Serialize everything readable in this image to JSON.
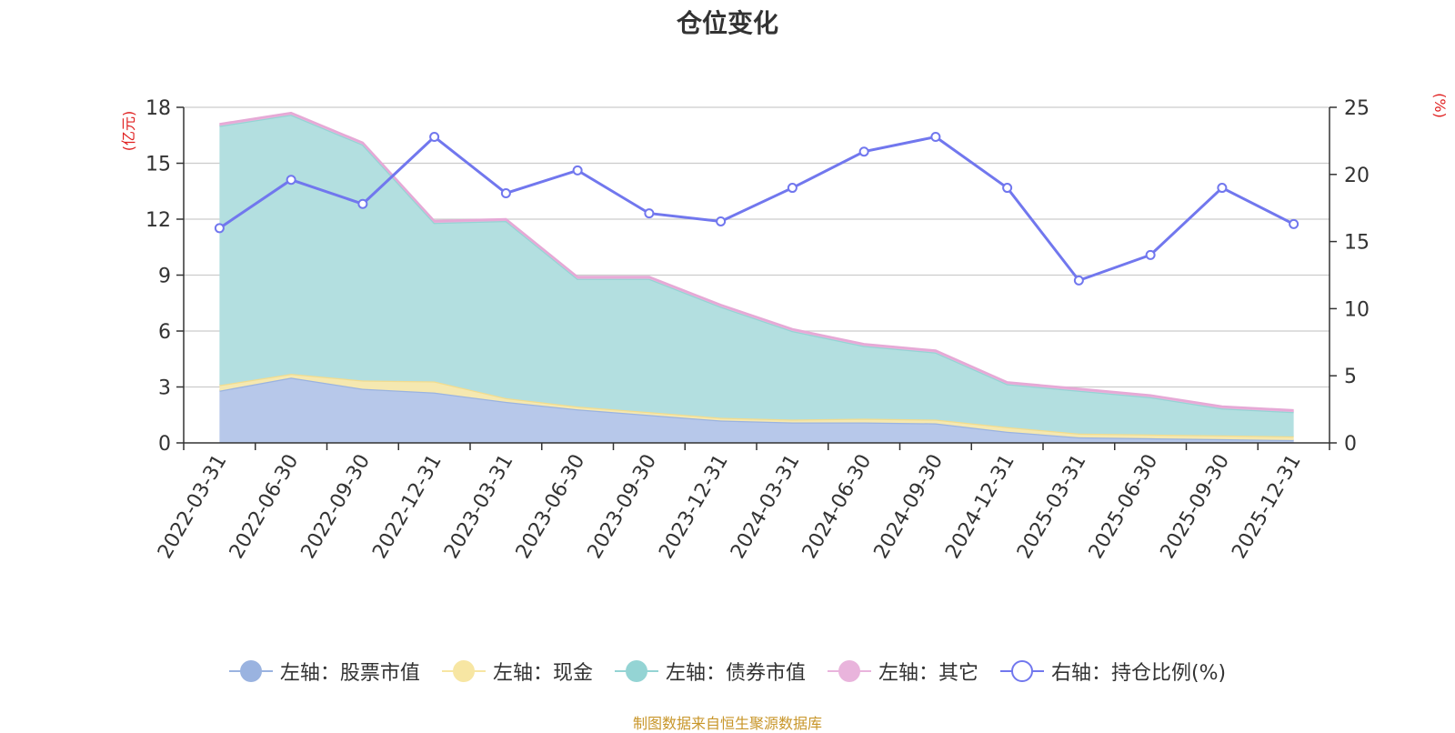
{
  "title": "仓位变化",
  "left_axis_unit": "(亿元)",
  "right_axis_unit": "(%)",
  "source_note": "制图数据来自恒生聚源数据库",
  "legend": [
    {
      "label": "左轴：股票市值",
      "color": "#9ab3e0",
      "hollow": false
    },
    {
      "label": "左轴：现金",
      "color": "#f7e6a3",
      "hollow": false
    },
    {
      "label": "左轴：债券市值",
      "color": "#94d4d4",
      "hollow": false
    },
    {
      "label": "左轴：其它",
      "color": "#e9b4dc",
      "hollow": false
    },
    {
      "label": "右轴：持仓比例(%)",
      "color": "#7177ee",
      "hollow": true
    }
  ],
  "chart_data": {
    "type": "area",
    "stacked": true,
    "categories": [
      "2022-03-31",
      "2022-06-30",
      "2022-09-30",
      "2022-12-31",
      "2023-03-31",
      "2023-06-30",
      "2023-09-30",
      "2023-12-31",
      "2024-03-31",
      "2024-06-30",
      "2024-09-30",
      "2024-12-31",
      "2025-03-31",
      "2025-06-30",
      "2025-09-30",
      "2025-12-31"
    ],
    "left_axis": {
      "min": 0,
      "max": 18,
      "ticks": [
        0,
        3,
        6,
        9,
        12,
        15,
        18
      ],
      "label": "(亿元)"
    },
    "right_axis": {
      "min": 0,
      "max": 25,
      "ticks": [
        0,
        5,
        10,
        15,
        20,
        25
      ],
      "label": "(%)"
    },
    "series": [
      {
        "name": "股票市值",
        "axis": "left",
        "color": "#b7c8ea",
        "line": "#9ab3e0",
        "values": [
          2.8,
          3.5,
          2.9,
          2.7,
          2.2,
          1.8,
          1.5,
          1.2,
          1.1,
          1.1,
          1.05,
          0.6,
          0.3,
          0.25,
          0.2,
          0.15
        ]
      },
      {
        "name": "现金",
        "axis": "left",
        "color": "#f5e8b0",
        "line": "#f2dc8e",
        "values": [
          0.3,
          0.2,
          0.45,
          0.6,
          0.2,
          0.15,
          0.15,
          0.15,
          0.15,
          0.2,
          0.2,
          0.25,
          0.2,
          0.2,
          0.2,
          0.2
        ]
      },
      {
        "name": "债券市值",
        "axis": "left",
        "color": "#b3dfe0",
        "line": "#94d4d4",
        "values": [
          13.9,
          13.9,
          12.65,
          8.5,
          9.5,
          6.85,
          7.15,
          5.95,
          4.75,
          3.9,
          3.6,
          2.3,
          2.3,
          2.0,
          1.45,
          1.3
        ]
      },
      {
        "name": "其它",
        "axis": "left",
        "color": "#e9b4dc",
        "line": "#e6a9d6",
        "values": [
          0.1,
          0.1,
          0.1,
          0.1,
          0.1,
          0.1,
          0.1,
          0.1,
          0.1,
          0.1,
          0.1,
          0.1,
          0.1,
          0.1,
          0.1,
          0.1
        ]
      },
      {
        "name": "持仓比例(%)",
        "axis": "right",
        "type": "line",
        "color": "#7177ee",
        "values": [
          16.0,
          19.6,
          17.8,
          22.8,
          18.6,
          20.3,
          17.1,
          16.5,
          19.0,
          21.7,
          22.8,
          19.0,
          12.1,
          14.0,
          19.0,
          16.3
        ]
      }
    ]
  }
}
